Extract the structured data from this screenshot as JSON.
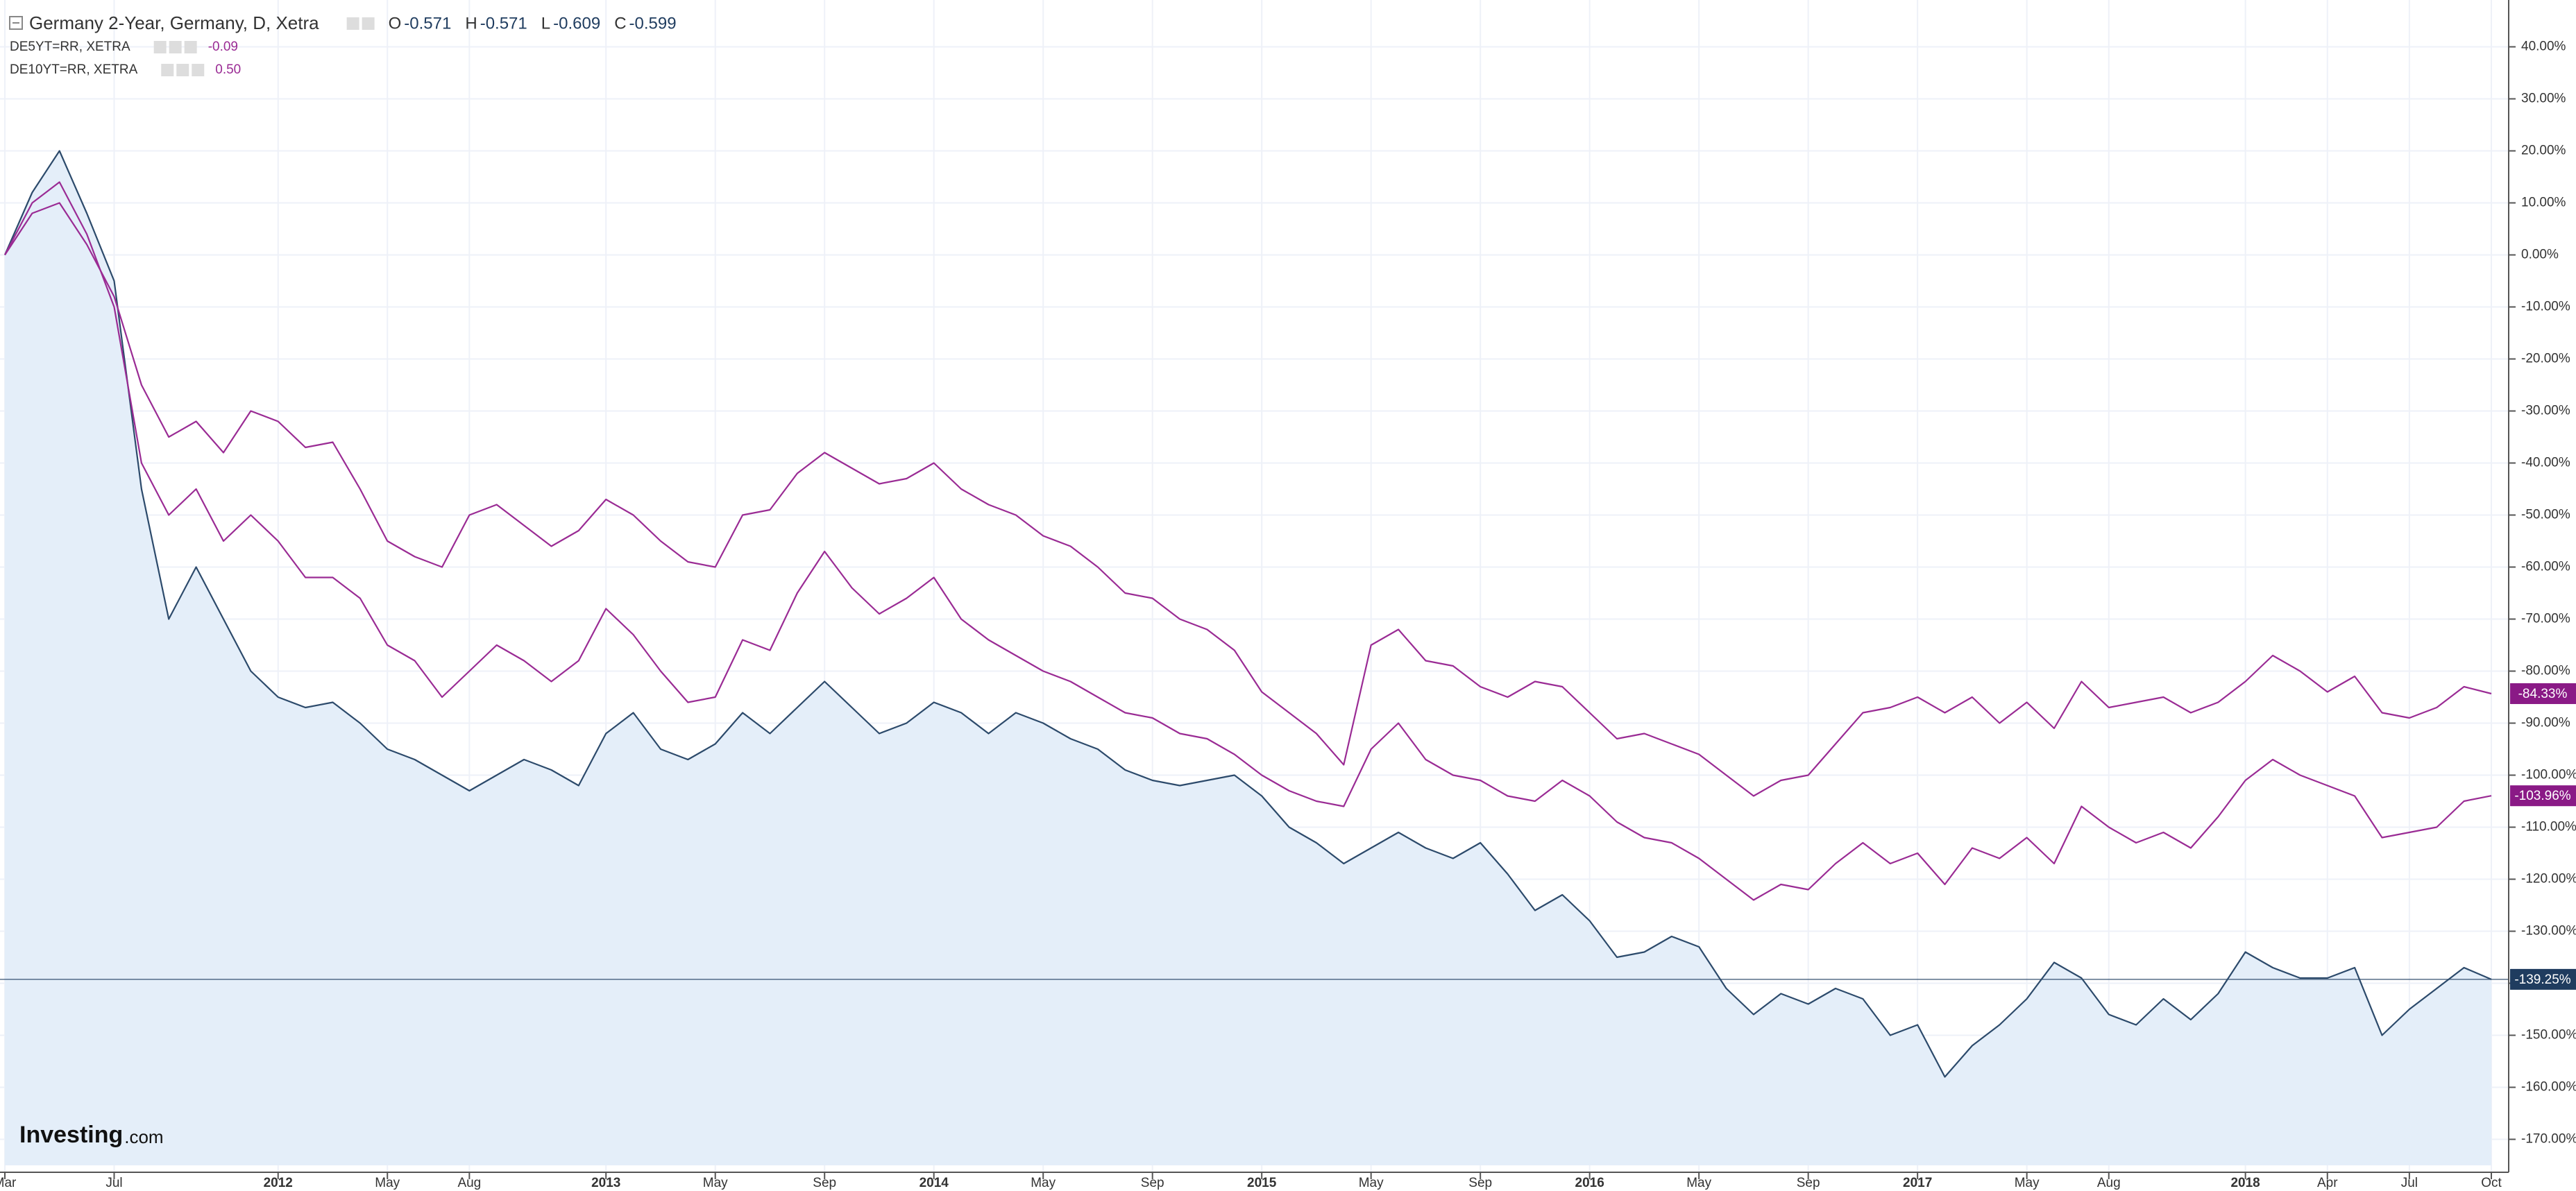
{
  "chart_data": {
    "type": "line",
    "title": "Germany 2-Year, Germany, D, Xetra",
    "ohlc": [
      {
        "label": "O",
        "value": "-0.571"
      },
      {
        "label": "H",
        "value": "-0.571"
      },
      {
        "label": "L",
        "value": "-0.609"
      },
      {
        "label": "C",
        "value": "-0.599"
      }
    ],
    "watermark": {
      "brand": "Investing",
      "suffix": ".com"
    },
    "x": [
      "2011-03",
      "2011-04",
      "2011-05",
      "2011-06",
      "2011-07",
      "2011-08",
      "2011-09",
      "2011-10",
      "2011-11",
      "2011-12",
      "2012-01",
      "2012-02",
      "2012-03",
      "2012-04",
      "2012-05",
      "2012-06",
      "2012-07",
      "2012-08",
      "2012-09",
      "2012-10",
      "2012-11",
      "2012-12",
      "2013-01",
      "2013-02",
      "2013-03",
      "2013-04",
      "2013-05",
      "2013-06",
      "2013-07",
      "2013-08",
      "2013-09",
      "2013-10",
      "2013-11",
      "2013-12",
      "2014-01",
      "2014-02",
      "2014-03",
      "2014-04",
      "2014-05",
      "2014-06",
      "2014-07",
      "2014-08",
      "2014-09",
      "2014-10",
      "2014-11",
      "2014-12",
      "2015-01",
      "2015-02",
      "2015-03",
      "2015-04",
      "2015-05",
      "2015-06",
      "2015-07",
      "2015-08",
      "2015-09",
      "2015-10",
      "2015-11",
      "2015-12",
      "2016-01",
      "2016-02",
      "2016-03",
      "2016-04",
      "2016-05",
      "2016-06",
      "2016-07",
      "2016-08",
      "2016-09",
      "2016-10",
      "2016-11",
      "2016-12",
      "2017-01",
      "2017-02",
      "2017-03",
      "2017-04",
      "2017-05",
      "2017-06",
      "2017-07",
      "2017-08",
      "2017-09",
      "2017-10",
      "2017-11",
      "2017-12",
      "2018-01",
      "2018-02",
      "2018-03",
      "2018-04",
      "2018-05",
      "2018-06",
      "2018-07",
      "2018-08",
      "2018-09",
      "2018-10"
    ],
    "series": [
      {
        "name": "Germany 2-Year, Germany, D, Xetra",
        "color": "#2c4a6b",
        "fill": "#e4eef9",
        "last_label": "-139.25%",
        "values": [
          0,
          12,
          20,
          8,
          -5,
          -45,
          -70,
          -60,
          -70,
          -80,
          -85,
          -87,
          -86,
          -90,
          -95,
          -97,
          -100,
          -103,
          -100,
          -97,
          -99,
          -102,
          -92,
          -88,
          -95,
          -97,
          -94,
          -88,
          -92,
          -87,
          -82,
          -87,
          -92,
          -90,
          -86,
          -88,
          -92,
          -88,
          -90,
          -93,
          -95,
          -99,
          -101,
          -102,
          -101,
          -100,
          -104,
          -110,
          -113,
          -117,
          -114,
          -111,
          -114,
          -116,
          -113,
          -119,
          -126,
          -123,
          -128,
          -135,
          -134,
          -131,
          -133,
          -141,
          -146,
          -142,
          -144,
          -141,
          -143,
          -150,
          -148,
          -158,
          -152,
          -148,
          -143,
          -136,
          -139,
          -146,
          -148,
          -143,
          -147,
          -142,
          -134,
          -137,
          -139,
          -139,
          -137,
          -150,
          -145,
          -141,
          -137,
          -139.25
        ]
      },
      {
        "name": "DE5YT=RR, XETRA",
        "legend_value": "-0.09",
        "color": "#9a2b94",
        "last_label": "-103.96%",
        "values": [
          0,
          10,
          14,
          4,
          -10,
          -40,
          -50,
          -45,
          -55,
          -50,
          -55,
          -62,
          -62,
          -66,
          -75,
          -78,
          -85,
          -80,
          -75,
          -78,
          -82,
          -78,
          -68,
          -73,
          -80,
          -86,
          -85,
          -74,
          -76,
          -65,
          -57,
          -64,
          -69,
          -66,
          -62,
          -70,
          -74,
          -77,
          -80,
          -82,
          -85,
          -88,
          -89,
          -92,
          -93,
          -96,
          -100,
          -103,
          -105,
          -106,
          -95,
          -90,
          -97,
          -100,
          -101,
          -104,
          -105,
          -101,
          -104,
          -109,
          -112,
          -113,
          -116,
          -120,
          -124,
          -121,
          -122,
          -117,
          -113,
          -117,
          -115,
          -121,
          -114,
          -116,
          -112,
          -117,
          -106,
          -110,
          -113,
          -111,
          -114,
          -108,
          -101,
          -97,
          -100,
          -102,
          -104,
          -112,
          -111,
          -110,
          -105,
          -103.96
        ]
      },
      {
        "name": "DE10YT=RR, XETRA",
        "legend_value": "0.50",
        "color": "#9a2b94",
        "last_label": "-84.33%",
        "values": [
          0,
          8,
          10,
          2,
          -8,
          -25,
          -35,
          -32,
          -38,
          -30,
          -32,
          -37,
          -36,
          -45,
          -55,
          -58,
          -60,
          -50,
          -48,
          -52,
          -56,
          -53,
          -47,
          -50,
          -55,
          -59,
          -60,
          -50,
          -49,
          -42,
          -38,
          -41,
          -44,
          -43,
          -40,
          -45,
          -48,
          -50,
          -54,
          -56,
          -60,
          -65,
          -66,
          -70,
          -72,
          -76,
          -84,
          -88,
          -92,
          -98,
          -75,
          -72,
          -78,
          -79,
          -83,
          -85,
          -82,
          -83,
          -88,
          -93,
          -92,
          -94,
          -96,
          -100,
          -104,
          -101,
          -100,
          -94,
          -88,
          -87,
          -85,
          -88,
          -85,
          -90,
          -86,
          -91,
          -82,
          -87,
          -86,
          -85,
          -88,
          -86,
          -82,
          -77,
          -80,
          -84,
          -81,
          -88,
          -89,
          -87,
          -83,
          -84.33
        ]
      }
    ],
    "ylim": [
      -175,
      49
    ],
    "yticks": [
      {
        "value": 40,
        "label": "40.00%"
      },
      {
        "value": 30,
        "label": "30.00%"
      },
      {
        "value": 20,
        "label": "20.00%"
      },
      {
        "value": 10,
        "label": "10.00%"
      },
      {
        "value": 0,
        "label": "0.00%"
      },
      {
        "value": -10,
        "label": "-10.00%"
      },
      {
        "value": -20,
        "label": "-20.00%"
      },
      {
        "value": -30,
        "label": "-30.00%"
      },
      {
        "value": -40,
        "label": "-40.00%"
      },
      {
        "value": -50,
        "label": "-50.00%"
      },
      {
        "value": -60,
        "label": "-60.00%"
      },
      {
        "value": -70,
        "label": "-70.00%"
      },
      {
        "value": -80,
        "label": "-80.00%"
      },
      {
        "value": -90,
        "label": "-90.00%"
      },
      {
        "value": -100,
        "label": "-100.00%"
      },
      {
        "value": -110,
        "label": "-110.00%"
      },
      {
        "value": -120,
        "label": "-120.00%"
      },
      {
        "value": -130,
        "label": "-130.00%"
      },
      {
        "value": -140,
        "label": "-140.00%"
      },
      {
        "value": -150,
        "label": "-150.00%"
      },
      {
        "value": -160,
        "label": "-160.00%"
      },
      {
        "value": -170,
        "label": "-170.00%"
      }
    ],
    "xticks": [
      {
        "value": "2011-03",
        "label": "Mar"
      },
      {
        "value": "2011-07",
        "label": "Jul"
      },
      {
        "value": "2012-01",
        "label": "2012"
      },
      {
        "value": "2012-05",
        "label": "May"
      },
      {
        "value": "2012-08",
        "label": "Aug"
      },
      {
        "value": "2013-01",
        "label": "2013"
      },
      {
        "value": "2013-05",
        "label": "May"
      },
      {
        "value": "2013-09",
        "label": "Sep"
      },
      {
        "value": "2014-01",
        "label": "2014"
      },
      {
        "value": "2014-05",
        "label": "May"
      },
      {
        "value": "2014-09",
        "label": "Sep"
      },
      {
        "value": "2015-01",
        "label": "2015"
      },
      {
        "value": "2015-05",
        "label": "May"
      },
      {
        "value": "2015-09",
        "label": "Sep"
      },
      {
        "value": "2016-01",
        "label": "2016"
      },
      {
        "value": "2016-05",
        "label": "May"
      },
      {
        "value": "2016-09",
        "label": "Sep"
      },
      {
        "value": "2017-01",
        "label": "2017"
      },
      {
        "value": "2017-05",
        "label": "May"
      },
      {
        "value": "2017-08",
        "label": "Aug"
      },
      {
        "value": "2018-01",
        "label": "2018"
      },
      {
        "value": "2018-04",
        "label": "Apr"
      },
      {
        "value": "2018-07",
        "label": "Jul"
      },
      {
        "value": "2018-10",
        "label": "Oct"
      }
    ],
    "grid": true
  }
}
